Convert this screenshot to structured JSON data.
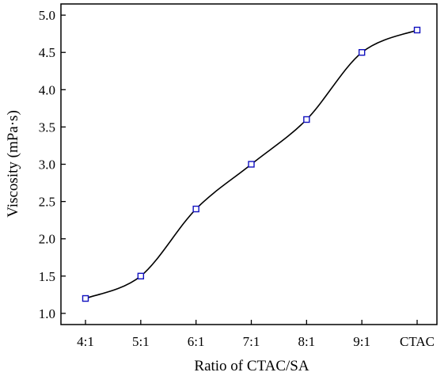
{
  "chart_data": {
    "type": "scatter",
    "xlabel": "Ratio of CTAC/SA",
    "ylabel": "Viscosity (mPa·s)",
    "categories": [
      "4:1",
      "5:1",
      "6:1",
      "7:1",
      "8:1",
      "9:1",
      "CTAC"
    ],
    "values": [
      1.2,
      1.5,
      2.4,
      3.0,
      3.6,
      4.5,
      4.8
    ],
    "ylim": [
      0.85,
      5.15
    ],
    "yticks": [
      "1.0",
      "1.5",
      "2.0",
      "2.5",
      "3.0",
      "3.5",
      "4.0",
      "4.5",
      "5.0"
    ],
    "fit_curve": "smooth",
    "grid": false,
    "legend": "none",
    "marker": "open-square",
    "colors": {
      "marker": "#1010c0",
      "curve": "#000000",
      "axis": "#000000"
    }
  }
}
